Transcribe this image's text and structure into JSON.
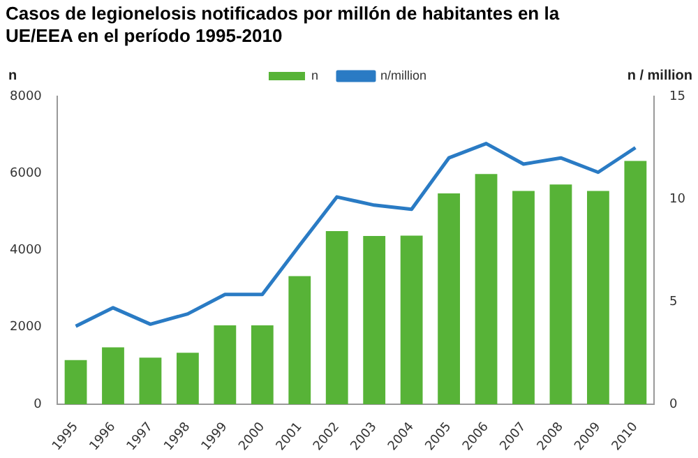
{
  "chart_data": {
    "type": "bar",
    "title": "Casos de legionelosis notificados por millón de habitantes en la UE/EEA en el período 1995-2010",
    "xlabel": null,
    "ylabel": "n",
    "y2label": "n / million",
    "categories": [
      "1995",
      "1996",
      "1997",
      "1998",
      "1999",
      "2000",
      "2001",
      "2002",
      "2003",
      "2004",
      "2005",
      "2006",
      "2007",
      "2008",
      "2009",
      "2010"
    ],
    "series": [
      {
        "name": "n",
        "color": "#57b337",
        "values": [
          1150,
          1480,
          1210,
          1340,
          2050,
          2050,
          3330,
          4500,
          4370,
          4380,
          5480,
          5980,
          5540,
          5710,
          5540,
          6320
        ]
      },
      {
        "name": "n/million",
        "type": "line",
        "axis": "y2",
        "color": "#2a7bc4",
        "values": [
          3.8,
          4.7,
          3.9,
          4.4,
          5.35,
          5.35,
          7.75,
          10.1,
          9.7,
          9.5,
          12.0,
          12.7,
          11.7,
          12.0,
          11.3,
          12.5
        ]
      }
    ],
    "ylim": [
      0,
      8000
    ],
    "yticks": [
      0,
      {
        "value": 2000,
        "label": "2000"
      },
      {
        "value": 4000,
        "label": "4000"
      },
      {
        "value": 6000,
        "label": "6000"
      },
      {
        "value": 8000,
        "label": "8000"
      }
    ],
    "y2lim": [
      0,
      15
    ],
    "y2ticks": [
      0,
      5,
      10,
      15
    ],
    "grid": false,
    "legend": "top",
    "marker": "none"
  }
}
